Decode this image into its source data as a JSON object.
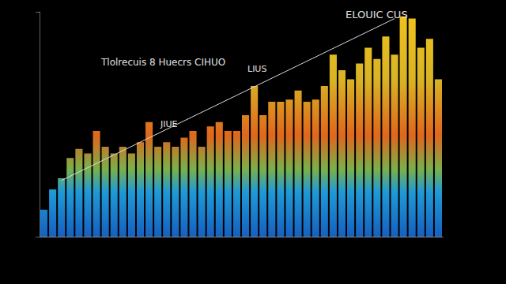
{
  "chart_data": {
    "type": "bar",
    "annotations": [
      "ELOUIC CUS",
      "Tlolrecuis 8 Huecrs CIHUO",
      "LIUS",
      "JIUE"
    ],
    "categories": [
      null,
      null,
      null,
      null,
      null,
      null,
      null,
      null,
      null,
      null,
      null,
      null,
      null,
      null,
      null,
      null,
      null,
      null,
      null,
      null,
      null,
      null,
      null,
      null,
      null,
      null,
      null,
      null,
      null,
      null,
      null,
      null,
      null,
      null,
      null,
      null,
      null,
      null,
      null,
      null,
      null,
      null,
      null,
      null,
      null,
      null
    ],
    "series": [
      {
        "type": "bar",
        "values": [
          12,
          21,
          26,
          35,
          39,
          37,
          47,
          40,
          37,
          40,
          37,
          42,
          51,
          40,
          42,
          40,
          44,
          47,
          40,
          49,
          51,
          47,
          47,
          54,
          67,
          54,
          60,
          60,
          61,
          65,
          60,
          61,
          67,
          81,
          74,
          70,
          77,
          84,
          79,
          89,
          81,
          98,
          97,
          84,
          88,
          70
        ]
      },
      {
        "type": "line",
        "values": [
          null,
          null,
          25,
          null,
          null,
          null,
          null,
          null,
          null,
          null,
          null,
          null,
          null,
          null,
          null,
          null,
          null,
          null,
          null,
          null,
          null,
          null,
          null,
          null,
          null,
          null,
          null,
          null,
          null,
          null,
          null,
          null,
          null,
          null,
          null,
          null,
          null,
          null,
          null,
          null,
          97,
          null,
          null,
          null,
          null,
          null
        ]
      }
    ],
    "ylim": [
      0,
      100
    ],
    "yticks": [
      0,
      100
    ],
    "grid": false,
    "tick_labels": false
  }
}
